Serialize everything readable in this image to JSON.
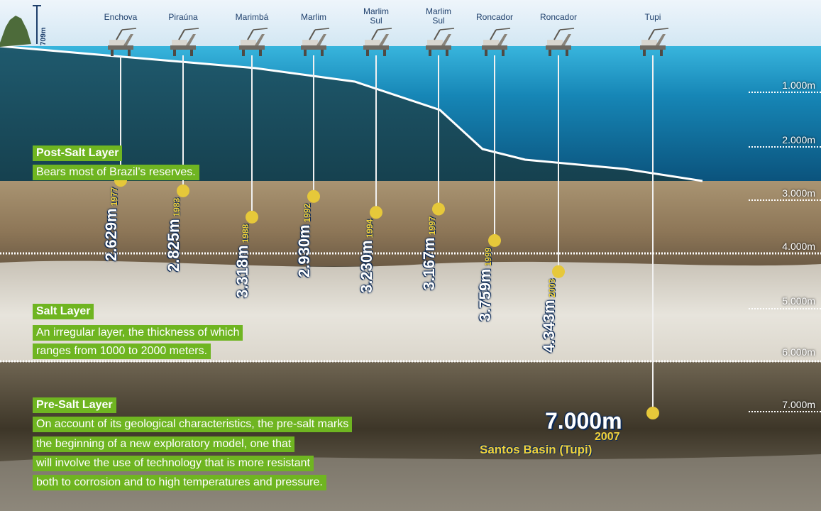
{
  "mountain_height": "709m",
  "platforms": [
    {
      "name": "Enchova",
      "depth": "2.629m",
      "year": "1977"
    },
    {
      "name": "Piraúna",
      "depth": "2.825m",
      "year": "1983"
    },
    {
      "name": "Marimbá",
      "depth": "3.318m",
      "year": "1988"
    },
    {
      "name": "Marlim",
      "depth": "2.930m",
      "year": "1992"
    },
    {
      "name": "Marlim\nSul",
      "depth": "3.230m",
      "year": "1994"
    },
    {
      "name": "Marlim\nSul",
      "depth": "3.167m",
      "year": "1997"
    },
    {
      "name": "Roncador",
      "depth": "3.759m",
      "year": "1999"
    },
    {
      "name": "Roncador",
      "depth": "4.343m",
      "year": "2003"
    },
    {
      "name": "Tupi",
      "depth": "7.000m",
      "year": "2007"
    }
  ],
  "depth_scale": [
    "1.000m",
    "2.000m",
    "3.000m",
    "4.000m",
    "5.000m",
    "6.000m",
    "7.000m"
  ],
  "layers": {
    "post_salt": {
      "title": "Post-Salt Layer",
      "lines": [
        "Bears most of Brazil’s reserves."
      ]
    },
    "salt": {
      "title": "Salt Layer",
      "lines": [
        "An irregular layer, the thickness of which",
        "ranges from 1000 to 2000 meters."
      ]
    },
    "pre_salt": {
      "title": "Pre-Salt Layer",
      "lines": [
        "On account of its geological characteristics, the pre-salt marks",
        "the beginning of a new exploratory model, one that",
        "will involve the use of technology that is more resistant",
        "both to corrosion and to high temperatures and pressure."
      ]
    }
  },
  "tupi": {
    "depth": "7.000m",
    "year": "2007",
    "basin": "Santos Basin (Tupi)"
  },
  "colors": {
    "label_green": "#6fb521",
    "marker_yellow": "#e6c83a",
    "sea": "#1f9bc8",
    "text_navy": "#1e3f6b"
  }
}
